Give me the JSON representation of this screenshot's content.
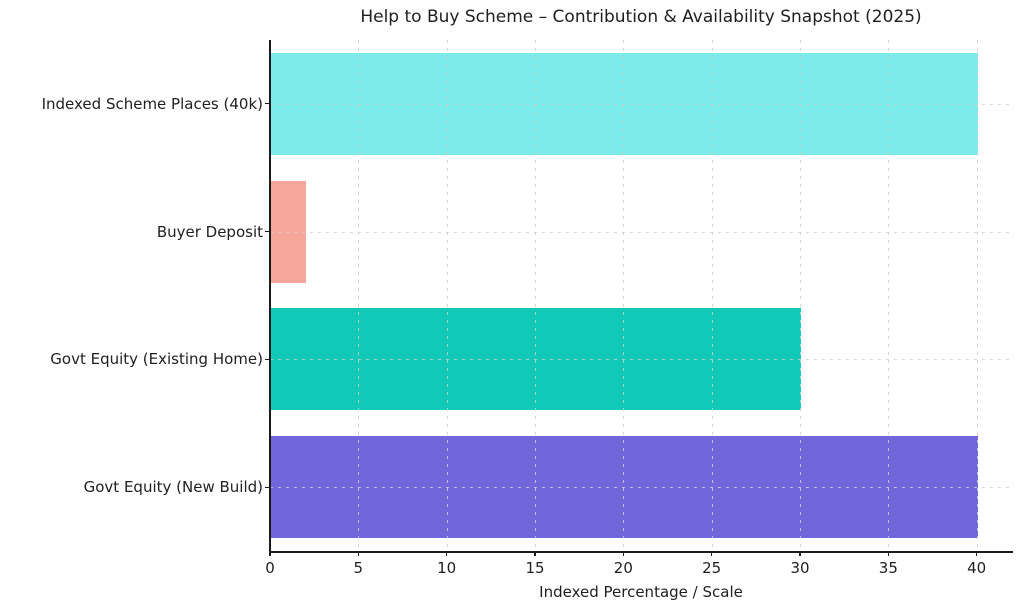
{
  "chart_data": {
    "type": "bar",
    "orientation": "horizontal",
    "title": "Help to Buy Scheme – Contribution & Availability Snapshot (2025)",
    "xlabel": "Indexed Percentage / Scale",
    "ylabel": "",
    "categories": [
      "Indexed Scheme Places (40k)",
      "Buyer Deposit",
      "Govt Equity (Existing Home)",
      "Govt Equity (New Build)"
    ],
    "values": [
      40,
      2,
      30,
      40
    ],
    "bar_colors": [
      "#7ceceb",
      "#f7a79a",
      "#11c9b7",
      "#7266dd"
    ],
    "xticks": [
      0,
      5,
      10,
      15,
      20,
      25,
      30,
      35,
      40
    ],
    "xlim": [
      0,
      42
    ],
    "grid": "dashed gridlines on both axes, drawn over bars",
    "legend": "none",
    "spines": [
      "left",
      "bottom"
    ]
  }
}
